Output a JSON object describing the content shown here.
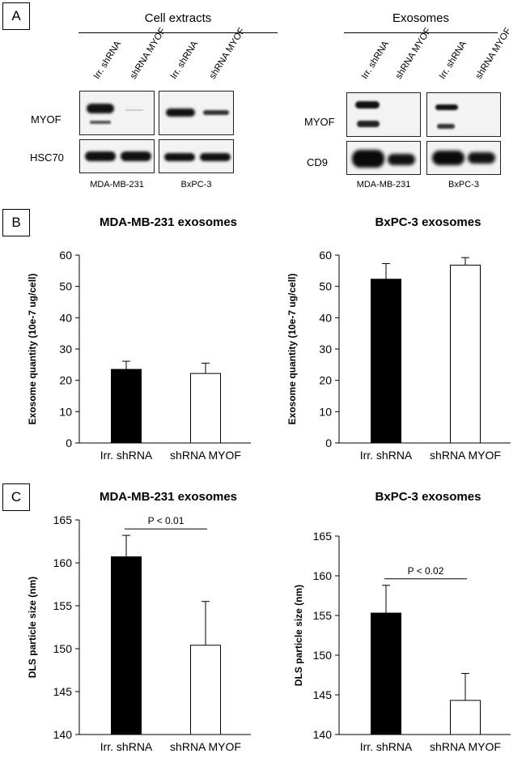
{
  "panels": {
    "a": "A",
    "b": "B",
    "c": "C"
  },
  "western": {
    "cell_title": "Cell extracts",
    "exo_title": "Exosomes",
    "lanes": [
      "Irr. shRNA",
      "shRNA MYOF",
      "Irr. shRNA",
      "shRNA MYOF"
    ],
    "exo_lanes": [
      "Irr. shRNA",
      "shRNA MYOF",
      "Irr. shRNA",
      "shRNA MYOF"
    ],
    "cell_rows": [
      "MYOF",
      "HSC70"
    ],
    "exo_rows": [
      "MYOF",
      "CD9"
    ],
    "cell_lines": [
      "MDA-MB-231",
      "BxPC-3"
    ],
    "exo_cell_lines": [
      "MDA-MB-231",
      "BxPC-3"
    ]
  },
  "chart_data": [
    {
      "type": "bar",
      "title": "MDA-MB-231 exosomes",
      "ylabel": "Exosome quantity (10e-7 ug/cell)",
      "xlabel": "",
      "categories": [
        "Irr. shRNA",
        "shRNA MYOF"
      ],
      "values": [
        23.5,
        22.2
      ],
      "errors": [
        2.6,
        3.3
      ],
      "ylim": [
        0,
        60
      ],
      "yticks": [
        0,
        10,
        20,
        30,
        40,
        50,
        60
      ],
      "fills": [
        "#000000",
        "#ffffff"
      ]
    },
    {
      "type": "bar",
      "title": "BxPC-3 exosomes",
      "ylabel": "Exosome quantity (10e-7 ug/cell)",
      "xlabel": "",
      "categories": [
        "Irr. shRNA",
        "shRNA MYOF"
      ],
      "values": [
        52.3,
        56.8
      ],
      "errors": [
        5.0,
        2.4
      ],
      "ylim": [
        0,
        60
      ],
      "yticks": [
        0,
        10,
        20,
        30,
        40,
        50,
        60
      ],
      "fills": [
        "#000000",
        "#ffffff"
      ]
    },
    {
      "type": "bar",
      "title": "MDA-MB-231 exosomes",
      "ylabel": "DLS particle size (nm)",
      "xlabel": "",
      "categories": [
        "Irr. shRNA",
        "shRNA MYOF"
      ],
      "values": [
        160.7,
        150.4
      ],
      "errors": [
        2.5,
        5.1
      ],
      "ylim": [
        140,
        165
      ],
      "yticks": [
        140,
        145,
        150,
        155,
        160,
        165
      ],
      "fills": [
        "#000000",
        "#ffffff"
      ],
      "annotation": "P < 0.01"
    },
    {
      "type": "bar",
      "title": "BxPC-3 exosomes",
      "ylabel": "DLS particle size (nm)",
      "xlabel": "",
      "categories": [
        "Irr. shRNA",
        "shRNA MYOF"
      ],
      "values": [
        155.3,
        144.3
      ],
      "errors": [
        3.5,
        3.4
      ],
      "ylim": [
        140,
        165
      ],
      "yticks": [
        140,
        145,
        150,
        155,
        160,
        165
      ],
      "fills": [
        "#000000",
        "#ffffff"
      ],
      "annotation": "P < 0.02"
    }
  ]
}
